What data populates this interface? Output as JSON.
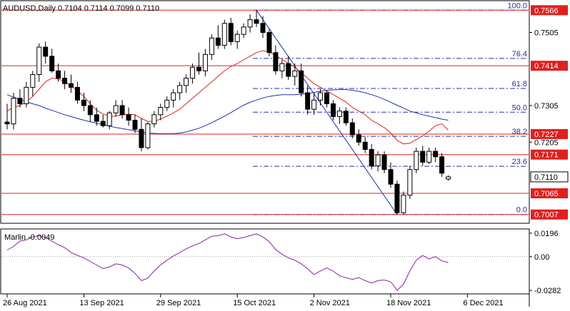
{
  "chart_data": [
    {
      "type": "candlestick",
      "title": "AUDUSD,Daily  0.7104 0.7114 0.7099 0.7110",
      "symbol": "AUDUSD",
      "timeframe": "Daily",
      "ohlc_header": {
        "open": 0.7104,
        "high": 0.7114,
        "low": 0.7099,
        "close": 0.711
      },
      "ylim": [
        0.6985,
        0.759
      ],
      "grid": false,
      "y_ticks": [
        "0.7505",
        "0.7305",
        "0.7205"
      ],
      "x_ticks": [
        {
          "i": 0,
          "label": "26 Aug 2021"
        },
        {
          "i": 12,
          "label": "13 Sep 2021"
        },
        {
          "i": 24,
          "label": "29 Sep 2021"
        },
        {
          "i": 36,
          "label": "15 Oct 2021"
        },
        {
          "i": 48,
          "label": "2 Nov 2021"
        },
        {
          "i": 60,
          "label": "18 Nov 2021"
        },
        {
          "i": 72,
          "label": "6 Dec 2021"
        }
      ],
      "candles": [
        [
          0.726,
          0.731,
          0.724,
          0.7255
        ],
        [
          0.7255,
          0.734,
          0.724,
          0.7325
        ],
        [
          0.7325,
          0.735,
          0.73,
          0.731
        ],
        [
          0.731,
          0.737,
          0.73,
          0.7355
        ],
        [
          0.7355,
          0.74,
          0.733,
          0.739
        ],
        [
          0.739,
          0.7475,
          0.737,
          0.7465
        ],
        [
          0.7465,
          0.748,
          0.742,
          0.744
        ],
        [
          0.744,
          0.746,
          0.7395,
          0.74
        ],
        [
          0.74,
          0.742,
          0.737,
          0.738
        ],
        [
          0.738,
          0.74,
          0.735,
          0.7365
        ],
        [
          0.7365,
          0.739,
          0.734,
          0.7355
        ],
        [
          0.7355,
          0.737,
          0.731,
          0.732
        ],
        [
          0.732,
          0.734,
          0.729,
          0.7305
        ],
        [
          0.7305,
          0.732,
          0.726,
          0.728
        ],
        [
          0.728,
          0.73,
          0.725,
          0.7262
        ],
        [
          0.7262,
          0.728,
          0.7245,
          0.725
        ],
        [
          0.725,
          0.729,
          0.724,
          0.7285
        ],
        [
          0.7285,
          0.732,
          0.7275,
          0.7305
        ],
        [
          0.7305,
          0.732,
          0.727,
          0.728
        ],
        [
          0.728,
          0.73,
          0.725,
          0.7265
        ],
        [
          0.7265,
          0.728,
          0.723,
          0.724
        ],
        [
          0.724,
          0.727,
          0.718,
          0.719
        ],
        [
          0.719,
          0.726,
          0.7185,
          0.7255
        ],
        [
          0.7255,
          0.729,
          0.7245,
          0.728
        ],
        [
          0.728,
          0.731,
          0.7265,
          0.73
        ],
        [
          0.73,
          0.733,
          0.729,
          0.732
        ],
        [
          0.732,
          0.735,
          0.73,
          0.734
        ],
        [
          0.734,
          0.737,
          0.732,
          0.736
        ],
        [
          0.736,
          0.739,
          0.734,
          0.738
        ],
        [
          0.738,
          0.742,
          0.7365,
          0.741
        ],
        [
          0.741,
          0.745,
          0.739,
          0.74
        ],
        [
          0.74,
          0.746,
          0.7385,
          0.7445
        ],
        [
          0.7445,
          0.75,
          0.743,
          0.749
        ],
        [
          0.749,
          0.7525,
          0.746,
          0.747
        ],
        [
          0.747,
          0.754,
          0.746,
          0.753
        ],
        [
          0.753,
          0.7545,
          0.747,
          0.748
        ],
        [
          0.748,
          0.751,
          0.746,
          0.75
        ],
        [
          0.75,
          0.753,
          0.749,
          0.752
        ],
        [
          0.752,
          0.7555,
          0.7505,
          0.754
        ],
        [
          0.754,
          0.7566,
          0.752,
          0.753
        ],
        [
          0.753,
          0.755,
          0.749,
          0.7505
        ],
        [
          0.7505,
          0.7515,
          0.744,
          0.745
        ],
        [
          0.745,
          0.747,
          0.739,
          0.74
        ],
        [
          0.74,
          0.743,
          0.738,
          0.742
        ],
        [
          0.742,
          0.744,
          0.7375,
          0.7385
        ],
        [
          0.7385,
          0.742,
          0.736,
          0.74
        ],
        [
          0.74,
          0.742,
          0.733,
          0.734
        ],
        [
          0.734,
          0.736,
          0.728,
          0.7295
        ],
        [
          0.7295,
          0.734,
          0.728,
          0.732
        ],
        [
          0.732,
          0.735,
          0.7305,
          0.734
        ],
        [
          0.734,
          0.7345,
          0.73,
          0.731
        ],
        [
          0.731,
          0.732,
          0.7265,
          0.7275
        ],
        [
          0.7275,
          0.73,
          0.7255,
          0.729
        ],
        [
          0.729,
          0.73,
          0.725,
          0.7258
        ],
        [
          0.7258,
          0.727,
          0.7215,
          0.7225
        ],
        [
          0.7225,
          0.724,
          0.7195,
          0.7205
        ],
        [
          0.7205,
          0.722,
          0.7175,
          0.7185
        ],
        [
          0.7185,
          0.72,
          0.713,
          0.714
        ],
        [
          0.714,
          0.718,
          0.7125,
          0.717
        ],
        [
          0.717,
          0.718,
          0.712,
          0.713
        ],
        [
          0.713,
          0.715,
          0.708,
          0.709
        ],
        [
          0.709,
          0.71,
          0.7007,
          0.7012
        ],
        [
          0.7012,
          0.707,
          0.7007,
          0.706
        ],
        [
          0.706,
          0.714,
          0.705,
          0.713
        ],
        [
          0.713,
          0.719,
          0.712,
          0.718
        ],
        [
          0.718,
          0.7195,
          0.714,
          0.715
        ],
        [
          0.715,
          0.719,
          0.7145,
          0.718
        ],
        [
          0.718,
          0.719,
          0.715,
          0.7165
        ],
        [
          0.7165,
          0.7175,
          0.711,
          0.712
        ],
        [
          0.7104,
          0.7114,
          0.7099,
          0.711
        ]
      ],
      "series": [
        {
          "name": "",
          "color": "#e0201e",
          "style": "ma",
          "values": [
            0.729,
            0.73,
            0.7305,
            0.7315,
            0.733,
            0.735,
            0.737,
            0.738,
            0.7378,
            0.737,
            0.736,
            0.7345,
            0.733,
            0.731,
            0.7292,
            0.7282,
            0.7276,
            0.7276,
            0.728,
            0.7281,
            0.728,
            0.727,
            0.7262,
            0.7262,
            0.7268,
            0.7276,
            0.7285,
            0.7295,
            0.731,
            0.7325,
            0.734,
            0.7355,
            0.737,
            0.7385,
            0.74,
            0.7412,
            0.742,
            0.743,
            0.744,
            0.745,
            0.7455,
            0.7452,
            0.7442,
            0.7432,
            0.742,
            0.741,
            0.7395,
            0.738,
            0.7365,
            0.7355,
            0.7345,
            0.7335,
            0.7325,
            0.7315,
            0.73,
            0.729,
            0.728,
            0.7265,
            0.7255,
            0.7245,
            0.723,
            0.721,
            0.72,
            0.7202,
            0.7212,
            0.7222,
            0.7235,
            0.725,
            0.7255,
            0.7238
          ]
        },
        {
          "name": "",
          "color": "#1f2fb0",
          "style": "ma",
          "values": [
            0.7335,
            0.7328,
            0.7322,
            0.7316,
            0.731,
            0.7305,
            0.7298,
            0.7292,
            0.7286,
            0.728,
            0.7275,
            0.727,
            0.7265,
            0.7261,
            0.7257,
            0.7253,
            0.7249,
            0.7245,
            0.7242,
            0.7239,
            0.7236,
            0.7233,
            0.723,
            0.7229,
            0.7228,
            0.7228,
            0.7228,
            0.723,
            0.7233,
            0.7238,
            0.7243,
            0.725,
            0.7258,
            0.7267,
            0.7276,
            0.7286,
            0.7296,
            0.7306,
            0.7314,
            0.732,
            0.7326,
            0.733,
            0.7333,
            0.7335,
            0.7335,
            0.7335,
            0.7336,
            0.7338,
            0.7341,
            0.7344,
            0.7347,
            0.7348,
            0.7349,
            0.7349,
            0.7347,
            0.7344,
            0.734,
            0.7335,
            0.7329,
            0.7322,
            0.7314,
            0.7306,
            0.7298,
            0.729,
            0.7285,
            0.728,
            0.7276,
            0.7272,
            0.7268,
            0.7265
          ]
        }
      ],
      "trendline": {
        "from": [
          39,
          0.7566
        ],
        "to": [
          61,
          0.7007
        ],
        "color": "#1f2fb0"
      },
      "fibonacci": [
        {
          "label": "100.0",
          "value": 0.7566
        },
        {
          "label": "76.4",
          "value": 0.7434
        },
        {
          "label": "61.8",
          "value": 0.7352
        },
        {
          "label": "50.0",
          "value": 0.7287
        },
        {
          "label": "38.2",
          "value": 0.7221
        },
        {
          "label": "23.6",
          "value": 0.7139
        },
        {
          "label": "0.0",
          "value": 0.7007
        }
      ],
      "horizontal_levels": [
        {
          "label": "0.7566",
          "value": 0.7566
        },
        {
          "label": "0.7414",
          "value": 0.7414
        },
        {
          "label": "0.7227",
          "value": 0.7227
        },
        {
          "label": "0.7171",
          "value": 0.7171
        },
        {
          "label": "0.7065",
          "value": 0.7065
        },
        {
          "label": "0.7007",
          "value": 0.7007
        }
      ],
      "current_price": {
        "label": "0.7110",
        "value": 0.711
      },
      "colors": {
        "level": "#e0201e",
        "fib": "#1f2fb0",
        "label_bg": "#e0201e",
        "price_bg": "#ffffff"
      }
    },
    {
      "type": "line",
      "title": "Marlin -0.0049",
      "indicator_name": "Marlin",
      "indicator_value": "-0.0049",
      "ylim": [
        -0.0305,
        0.0225
      ],
      "y_ticks": [
        "0.0196",
        "0.00",
        "-0.0282"
      ],
      "zero_line": 0.0,
      "color": "#8b1fa3",
      "values": [
        0.0055,
        0.0085,
        0.013,
        0.014,
        0.0165,
        0.0175,
        0.016,
        0.013,
        0.01,
        0.0075,
        0.0035,
        0.001,
        -0.001,
        -0.004,
        -0.007,
        -0.01,
        -0.0085,
        -0.006,
        -0.007,
        -0.0095,
        -0.014,
        -0.02,
        -0.018,
        -0.012,
        -0.007,
        -0.003,
        0.0005,
        0.0035,
        0.0065,
        0.009,
        0.011,
        0.014,
        0.017,
        0.0175,
        0.019,
        0.0165,
        0.015,
        0.016,
        0.0175,
        0.019,
        0.0165,
        0.0125,
        0.006,
        0.002,
        -0.001,
        -0.003,
        -0.006,
        -0.01,
        -0.015,
        -0.012,
        -0.0095,
        -0.012,
        -0.016,
        -0.0175,
        -0.019,
        -0.0175,
        -0.02,
        -0.022,
        -0.02,
        -0.0195,
        -0.021,
        -0.0282,
        -0.023,
        -0.012,
        -0.003,
        0.001,
        -0.002,
        0.0,
        -0.0035,
        -0.0049
      ]
    }
  ]
}
